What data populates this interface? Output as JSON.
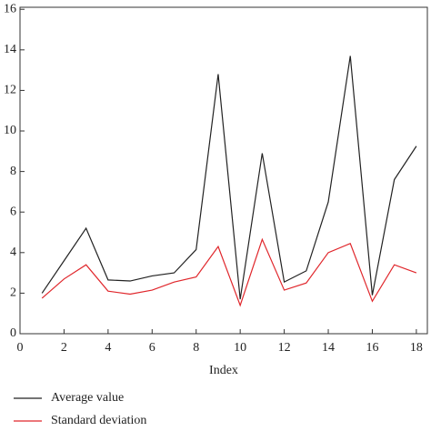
{
  "chart_data": {
    "type": "line",
    "x_label": "Index",
    "x": [
      1,
      2,
      3,
      4,
      5,
      6,
      7,
      8,
      9,
      10,
      11,
      12,
      13,
      14,
      15,
      16,
      17,
      18
    ],
    "series": [
      {
        "name": "Average value",
        "color": "#222222",
        "values": [
          2.0,
          3.6,
          5.2,
          2.65,
          2.6,
          2.85,
          3.0,
          4.15,
          12.8,
          1.7,
          8.9,
          2.55,
          3.1,
          6.5,
          13.7,
          1.9,
          7.6,
          9.25
        ]
      },
      {
        "name": "Standard deviation",
        "color": "#e0262b",
        "values": [
          1.75,
          2.7,
          3.4,
          2.1,
          1.95,
          2.15,
          2.55,
          2.8,
          4.3,
          1.4,
          4.65,
          2.15,
          2.5,
          4.0,
          4.45,
          1.6,
          3.4,
          3.0
        ]
      }
    ],
    "xlim": [
      0,
      18.5
    ],
    "xticks": [
      0,
      2,
      4,
      6,
      8,
      10,
      12,
      14,
      16,
      18
    ],
    "ylim": [
      0,
      16.1
    ],
    "yticks": [
      0,
      2,
      4,
      6,
      8,
      10,
      12,
      14,
      16
    ],
    "legend": "bottom-left"
  }
}
